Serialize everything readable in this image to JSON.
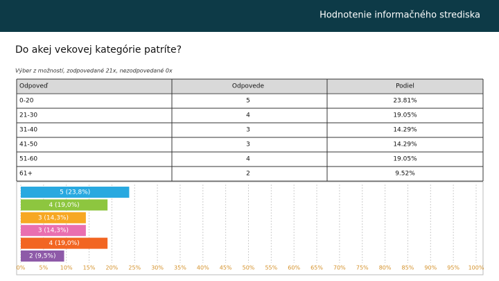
{
  "header": {
    "title": "Hodnotenie informačného strediska"
  },
  "question": "Do akej vekovej kategórie patríte?",
  "note": "Výber z možností, zodpovedané 21x, nezodpovedané 0x",
  "table": {
    "columns": [
      "Odpoveď",
      "Odpovede",
      "Podiel"
    ],
    "rows": [
      [
        "0-20",
        "5",
        "23.81%"
      ],
      [
        "21-30",
        "4",
        "19.05%"
      ],
      [
        "31-40",
        "3",
        "14.29%"
      ],
      [
        "41-50",
        "3",
        "14.29%"
      ],
      [
        "51-60",
        "4",
        "19.05%"
      ],
      [
        "61+",
        "2",
        "9.52%"
      ]
    ]
  },
  "chart_data": {
    "type": "bar",
    "orientation": "horizontal",
    "values": [
      23.81,
      19.05,
      14.29,
      14.29,
      19.05,
      9.52
    ],
    "value_labels": [
      "5 (23,8%)",
      "4 (19,0%)",
      "3 (14,3%)",
      "3 (14,3%)",
      "4 (19,0%)",
      "2 (9,5%)"
    ],
    "colors": [
      "#29a9e0",
      "#8dc63f",
      "#f7a823",
      "#e96fb0",
      "#f26522",
      "#8e5aa8"
    ],
    "xlim": [
      0,
      100
    ],
    "xticks": [
      {
        "value": 0,
        "label": "0%"
      },
      {
        "value": 5,
        "label": "5%"
      },
      {
        "value": 10,
        "label": "10%"
      },
      {
        "value": 15,
        "label": "15%"
      },
      {
        "value": 20,
        "label": "20%"
      },
      {
        "value": 25,
        "label": "25%"
      },
      {
        "value": 30,
        "label": "30%"
      },
      {
        "value": 35,
        "label": "35%"
      },
      {
        "value": 40,
        "label": "40%"
      },
      {
        "value": 45,
        "label": "45%"
      },
      {
        "value": 50,
        "label": "50%"
      },
      {
        "value": 55,
        "label": "55%"
      },
      {
        "value": 60,
        "label": "60%"
      },
      {
        "value": 65,
        "label": "65%"
      },
      {
        "value": 70,
        "label": "70%"
      },
      {
        "value": 75,
        "label": "75%"
      },
      {
        "value": 80,
        "label": "80%"
      },
      {
        "value": 85,
        "label": "85%"
      },
      {
        "value": 90,
        "label": "90%"
      },
      {
        "value": 95,
        "label": "95%"
      },
      {
        "value": 100,
        "label": "100%"
      }
    ],
    "grid": true
  }
}
